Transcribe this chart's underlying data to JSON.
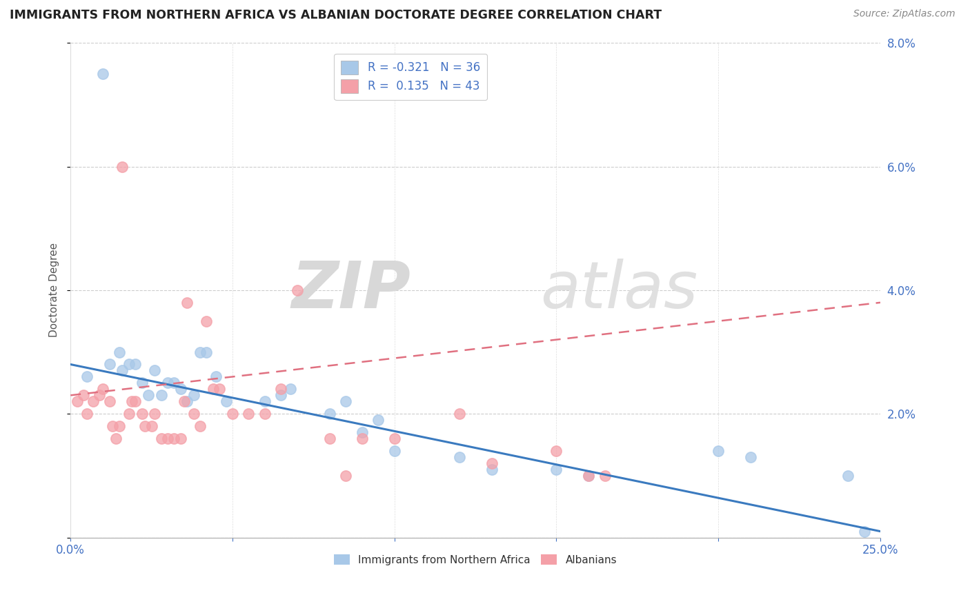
{
  "title": "IMMIGRANTS FROM NORTHERN AFRICA VS ALBANIAN DOCTORATE DEGREE CORRELATION CHART",
  "source": "Source: ZipAtlas.com",
  "ylabel": "Doctorate Degree",
  "xlim": [
    0.0,
    0.25
  ],
  "ylim": [
    0.0,
    0.08
  ],
  "xticks": [
    0.0,
    0.05,
    0.1,
    0.15,
    0.2,
    0.25
  ],
  "yticks": [
    0.0,
    0.02,
    0.04,
    0.06,
    0.08
  ],
  "blue_color": "#a8c8e8",
  "pink_color": "#f4a0a8",
  "blue_line_color": "#3a7abf",
  "pink_line_color": "#e07080",
  "legend_r1": "R = -0.321",
  "legend_n1": "N = 36",
  "legend_r2": "R =  0.135",
  "legend_n2": "N = 43",
  "watermark_zip": "ZIP",
  "watermark_atlas": "atlas",
  "blue_scatter_x": [
    0.005,
    0.01,
    0.012,
    0.015,
    0.016,
    0.018,
    0.02,
    0.022,
    0.024,
    0.026,
    0.028,
    0.03,
    0.032,
    0.034,
    0.036,
    0.038,
    0.04,
    0.042,
    0.045,
    0.048,
    0.06,
    0.065,
    0.068,
    0.08,
    0.085,
    0.09,
    0.095,
    0.1,
    0.12,
    0.13,
    0.15,
    0.16,
    0.2,
    0.21,
    0.24,
    0.245
  ],
  "blue_scatter_y": [
    0.026,
    0.075,
    0.028,
    0.03,
    0.027,
    0.028,
    0.028,
    0.025,
    0.023,
    0.027,
    0.023,
    0.025,
    0.025,
    0.024,
    0.022,
    0.023,
    0.03,
    0.03,
    0.026,
    0.022,
    0.022,
    0.023,
    0.024,
    0.02,
    0.022,
    0.017,
    0.019,
    0.014,
    0.013,
    0.011,
    0.011,
    0.01,
    0.014,
    0.013,
    0.01,
    0.001
  ],
  "pink_scatter_x": [
    0.002,
    0.004,
    0.005,
    0.007,
    0.009,
    0.01,
    0.012,
    0.013,
    0.014,
    0.015,
    0.016,
    0.018,
    0.019,
    0.02,
    0.022,
    0.023,
    0.025,
    0.026,
    0.028,
    0.03,
    0.032,
    0.034,
    0.035,
    0.036,
    0.038,
    0.04,
    0.042,
    0.044,
    0.046,
    0.05,
    0.055,
    0.06,
    0.065,
    0.07,
    0.08,
    0.085,
    0.09,
    0.1,
    0.12,
    0.13,
    0.15,
    0.16,
    0.165
  ],
  "pink_scatter_y": [
    0.022,
    0.023,
    0.02,
    0.022,
    0.023,
    0.024,
    0.022,
    0.018,
    0.016,
    0.018,
    0.06,
    0.02,
    0.022,
    0.022,
    0.02,
    0.018,
    0.018,
    0.02,
    0.016,
    0.016,
    0.016,
    0.016,
    0.022,
    0.038,
    0.02,
    0.018,
    0.035,
    0.024,
    0.024,
    0.02,
    0.02,
    0.02,
    0.024,
    0.04,
    0.016,
    0.01,
    0.016,
    0.016,
    0.02,
    0.012,
    0.014,
    0.01,
    0.01
  ],
  "blue_trend_x": [
    0.0,
    0.25
  ],
  "blue_trend_y": [
    0.028,
    0.001
  ],
  "pink_trend_x": [
    0.0,
    0.25
  ],
  "pink_trend_y": [
    0.023,
    0.038
  ]
}
